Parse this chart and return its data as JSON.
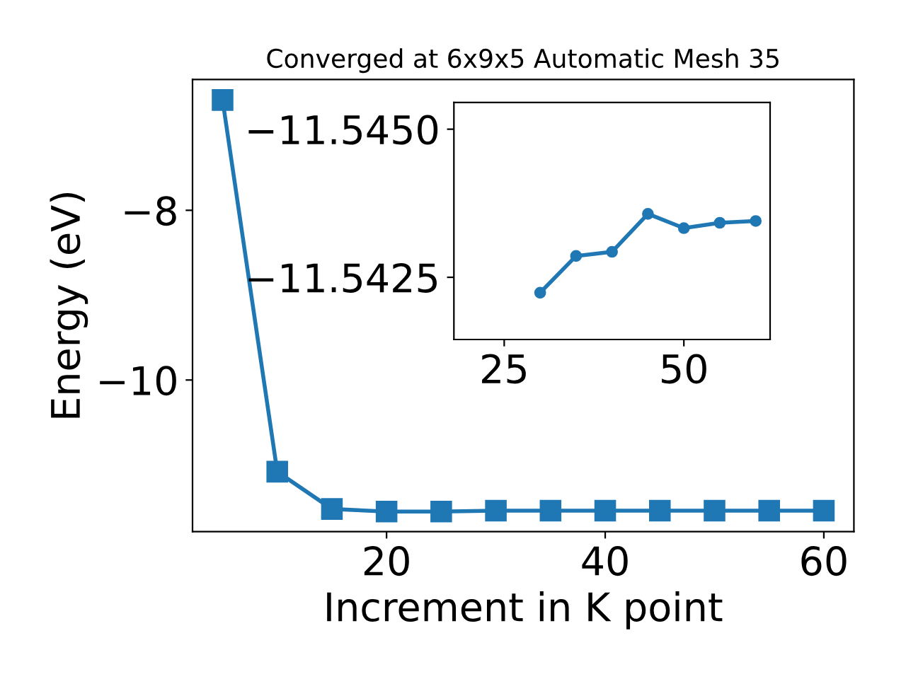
{
  "chart_data": [
    {
      "type": "line",
      "title": "Converged at 6x9x5 Automatic Mesh 35",
      "xlabel": "Increment in K point",
      "ylabel": "Energy (eV)",
      "marker": "square",
      "line_style": "solid",
      "grid": false,
      "series": [
        {
          "color": "#1f77b4",
          "x": [
            5,
            10,
            15,
            20,
            25,
            30,
            35,
            40,
            45,
            50,
            55,
            60
          ],
          "values": [
            -6.7,
            -11.08,
            -11.52,
            -11.55,
            -11.55,
            -11.54,
            -11.54,
            -11.54,
            -11.54,
            -11.54,
            -11.54,
            -11.54
          ]
        }
      ],
      "xlim": [
        2.25,
        62.75
      ],
      "ylim": [
        -11.787,
        -6.458
      ],
      "xticks": [
        20,
        40,
        60
      ],
      "yticks": [
        {
          "value": -8,
          "label": "−8"
        },
        {
          "value": -10,
          "label": "−10"
        }
      ]
    },
    {
      "type": "line",
      "marker": "circle",
      "line_style": "solid",
      "grid": false,
      "series": [
        {
          "color": "#1f77b4",
          "x": [
            30,
            35,
            40,
            45,
            50,
            55,
            60
          ],
          "values": [
            -11.54224,
            -11.54286,
            -11.54293,
            -11.54357,
            -11.54333,
            -11.54342,
            -11.54345
          ]
        }
      ],
      "xlim": [
        18,
        62
      ],
      "ylim": [
        -11.54145,
        -11.54545
      ],
      "xticks": [
        25,
        50
      ],
      "yticks": [
        {
          "value": -11.545,
          "label": "−11.5450"
        },
        {
          "value": -11.5425,
          "label": "−11.5425"
        }
      ]
    }
  ]
}
